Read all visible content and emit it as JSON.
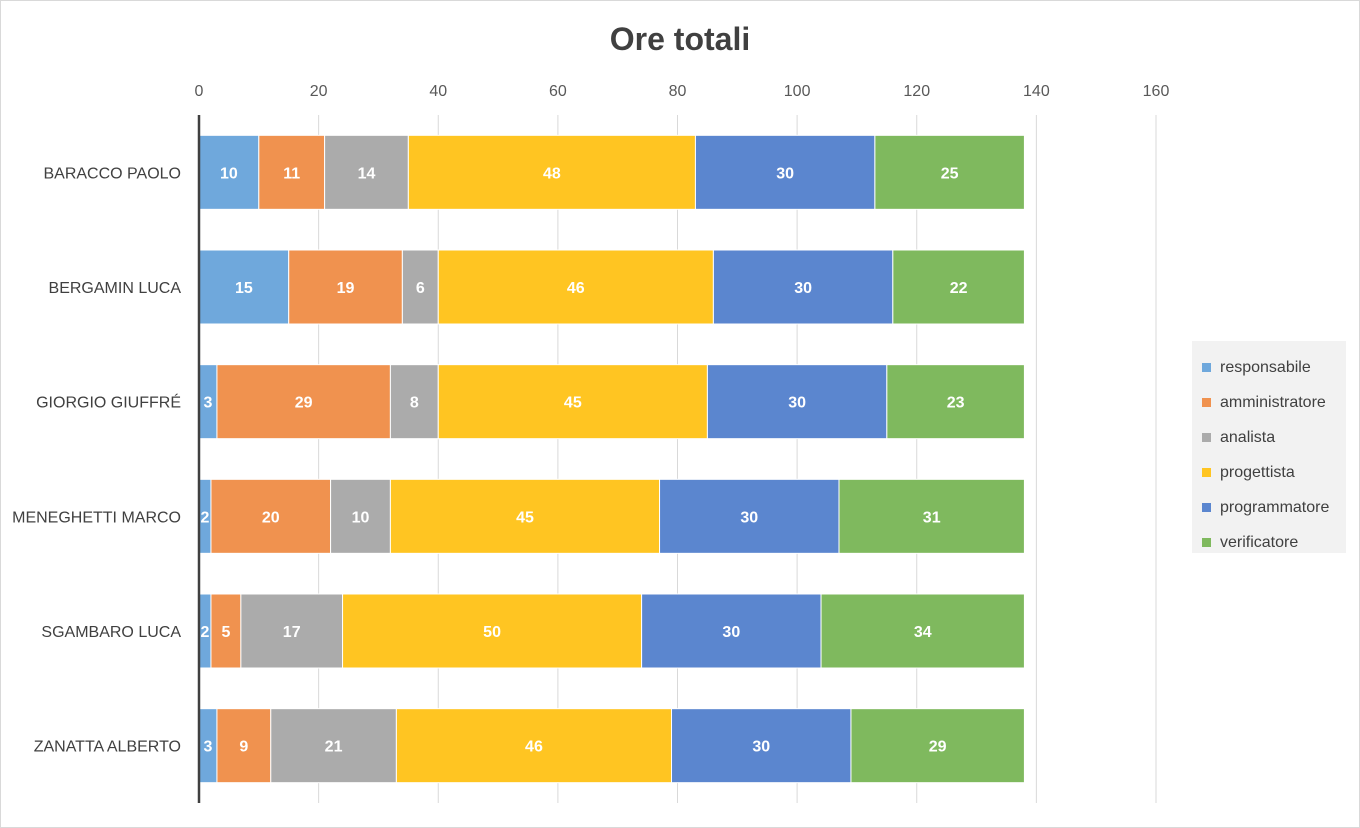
{
  "chart_data": {
    "type": "bar",
    "orientation": "horizontal",
    "stacked": true,
    "title": "Ore totali",
    "categories": [
      "BARACCO PAOLO",
      "BERGAMIN LUCA",
      "GIORGIO GIUFFRÉ",
      "MENEGHETTI MARCO",
      "SGAMBARO LUCA",
      "ZANATTA ALBERTO"
    ],
    "series": [
      {
        "name": "responsabile",
        "color": "#6fa8dc",
        "values": [
          10,
          15,
          3,
          2,
          2,
          3
        ]
      },
      {
        "name": "amministratore",
        "color": "#f0924f",
        "values": [
          11,
          19,
          29,
          20,
          5,
          9
        ]
      },
      {
        "name": "analista",
        "color": "#ababab",
        "values": [
          14,
          6,
          8,
          10,
          17,
          21
        ]
      },
      {
        "name": "progettista",
        "color": "#ffc522",
        "values": [
          48,
          46,
          45,
          45,
          50,
          46
        ]
      },
      {
        "name": "programmatore",
        "color": "#5b86cf",
        "values": [
          30,
          30,
          30,
          30,
          30,
          30
        ]
      },
      {
        "name": "verificatore",
        "color": "#7fb95e",
        "values": [
          25,
          22,
          23,
          31,
          34,
          29
        ]
      }
    ],
    "xlim": [
      0,
      160
    ],
    "xticks": [
      0,
      20,
      40,
      60,
      80,
      100,
      120,
      140,
      160
    ],
    "x_axis_position": "top",
    "grid": true,
    "legend_position": "right"
  }
}
